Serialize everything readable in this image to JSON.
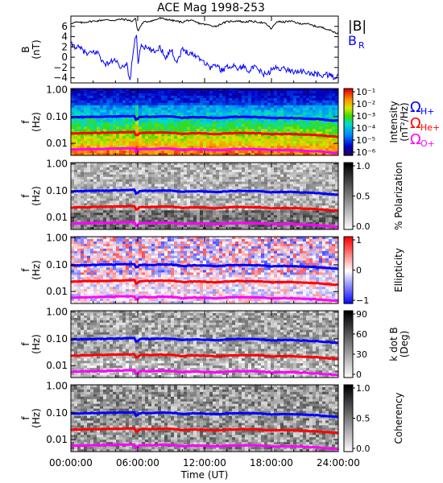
{
  "chart_data": {
    "type": "line",
    "title": "ACE Mag 1998-253",
    "xlabel": "Time (UT)",
    "x_ticks": [
      "00:00:00",
      "06:00:00",
      "12:00:00",
      "18:00:00",
      "24:00:00"
    ],
    "xlim_hours": [
      0,
      24
    ],
    "panels": [
      {
        "id": "b",
        "ylabel_main": "B",
        "ylabel_unit": "(nT)",
        "ylim": [
          -5,
          8
        ],
        "y_ticks": [
          6,
          4,
          2,
          0,
          -2,
          -4
        ],
        "legend": [
          "|B|",
          "B",
          "R"
        ],
        "series": [
          {
            "name": "|B|",
            "color": "#000000",
            "x": [
              0,
              0.5,
              1,
              1.5,
              2,
              2.5,
              3,
              3.5,
              4,
              4.5,
              5,
              5.5,
              5.8,
              6.0,
              6.3,
              6.5,
              7,
              7.5,
              8,
              8.5,
              9,
              9.5,
              10,
              10.5,
              11,
              11.5,
              12,
              12.5,
              13,
              13.5,
              14,
              14.5,
              15,
              15.5,
              16,
              16.5,
              17,
              17.5,
              18,
              18.5,
              19,
              19.5,
              20,
              20.5,
              21,
              21.5,
              22,
              22.5,
              23,
              23.5,
              24
            ],
            "y": [
              6.6,
              6.8,
              6.7,
              6.9,
              7.0,
              7.1,
              7.3,
              7.2,
              7.2,
              7.4,
              7.3,
              7.0,
              7.6,
              5.0,
              6.2,
              6.8,
              7.0,
              7.2,
              7.6,
              7.4,
              7.2,
              7.0,
              6.8,
              7.2,
              7.0,
              6.6,
              6.4,
              6.2,
              6.0,
              6.5,
              6.9,
              7.0,
              7.1,
              6.8,
              7.0,
              6.9,
              6.8,
              6.5,
              5.5,
              7.0,
              6.8,
              7.0,
              6.9,
              6.5,
              6.6,
              6.3,
              6.0,
              5.8,
              5.5,
              5.0,
              4.6
            ]
          },
          {
            "name": "B_R",
            "color": "#0000ff",
            "x": [
              0,
              0.5,
              1,
              1.5,
              2,
              2.5,
              3,
              3.5,
              4,
              4.5,
              5,
              5.3,
              5.6,
              5.9,
              6.0,
              6.3,
              6.6,
              7,
              7.5,
              8,
              8.5,
              9,
              9.5,
              10,
              10.5,
              11,
              11.5,
              12,
              12.5,
              13,
              13.5,
              14,
              14.5,
              15,
              15.5,
              16,
              16.5,
              17,
              17.5,
              18,
              18.5,
              19,
              19.5,
              20,
              20.5,
              21,
              21.5,
              22,
              22.5,
              23,
              23.5,
              24
            ],
            "y": [
              2.5,
              2.0,
              1.5,
              0.5,
              1.0,
              0.8,
              -1.5,
              -1.0,
              -0.5,
              -2.5,
              -1.0,
              -4.8,
              1.5,
              4.8,
              -1.5,
              2.5,
              2.0,
              1.5,
              1.0,
              2.0,
              0.0,
              1.5,
              -1.0,
              1.5,
              1.0,
              0.5,
              0.0,
              -1.0,
              -2.0,
              -1.5,
              -2.5,
              -2.0,
              -1.5,
              -2.2,
              -1.8,
              -2.5,
              -2.0,
              -2.8,
              -3.5,
              -2.5,
              -2.0,
              -2.2,
              -2.5,
              -2.8,
              -2.6,
              -3.0,
              -3.2,
              -3.3,
              -3.5,
              -3.4,
              -3.8,
              -3.8
            ]
          }
        ]
      },
      {
        "id": "intensity",
        "ylabel_main": "f",
        "ylabel_unit": "(Hz)",
        "colorbar_title": "Intensity",
        "colorbar_unit": "(nT²/Hz)",
        "colorbar_ticks": [
          "10⁻¹",
          "10⁻²",
          "10⁻³",
          "10⁻⁴",
          "10⁻⁵",
          "10⁻⁶"
        ],
        "colormap": "rainbow",
        "cyclotron_legend": [
          {
            "base": "Ω",
            "sub": "H+",
            "color": "#0000ff"
          },
          {
            "base": "Ω",
            "sub": "He+",
            "color": "#ff0000"
          },
          {
            "base": "Ω",
            "sub": "O+",
            "color": "#ff00ff"
          }
        ]
      },
      {
        "id": "polarization",
        "ylabel_main": "f",
        "ylabel_unit": "(Hz)",
        "colorbar_title": "% Polarization",
        "colorbar_ticks": [
          "1.0",
          "0.5",
          "0.0"
        ],
        "colormap": "gray"
      },
      {
        "id": "ellipticity",
        "ylabel_main": "f",
        "ylabel_unit": "(Hz)",
        "colorbar_title": "Ellipticity",
        "colorbar_ticks": [
          "1",
          "0",
          "−1"
        ],
        "colormap": "bwr"
      },
      {
        "id": "kdotb",
        "ylabel_main": "f",
        "ylabel_unit": "(Hz)",
        "colorbar_title": "k dot B",
        "colorbar_unit": "(Deg)",
        "colorbar_ticks": [
          "90",
          "60",
          "30",
          "0"
        ],
        "colormap": "gray"
      },
      {
        "id": "coherency",
        "ylabel_main": "f",
        "ylabel_unit": "(Hz)",
        "colorbar_title": "Coherency",
        "colorbar_ticks": [
          "1.0",
          "0.5",
          "0.0"
        ],
        "colormap": "gray"
      }
    ],
    "freq_ticks": [
      "1.00",
      "0.10",
      "0.01"
    ],
    "freq_ylim_log10": [
      -2.45,
      0.05
    ],
    "cyclotron_lines": {
      "x": [
        0,
        1,
        2,
        3,
        4,
        5,
        5.7,
        5.9,
        6.1,
        6.5,
        7,
        8,
        9,
        10,
        11,
        12,
        13,
        14,
        15,
        16,
        17,
        18,
        19,
        20,
        21,
        22,
        23,
        24
      ],
      "H+": [
        0.093,
        0.096,
        0.098,
        0.1,
        0.102,
        0.104,
        0.106,
        0.07,
        0.095,
        0.1,
        0.098,
        0.102,
        0.101,
        0.09,
        0.096,
        0.093,
        0.088,
        0.094,
        0.098,
        0.097,
        0.095,
        0.087,
        0.09,
        0.089,
        0.085,
        0.082,
        0.075,
        0.07
      ],
      "He+": [
        0.0233,
        0.024,
        0.0245,
        0.025,
        0.0255,
        0.026,
        0.0265,
        0.0175,
        0.024,
        0.025,
        0.0245,
        0.0255,
        0.0252,
        0.0225,
        0.024,
        0.0233,
        0.022,
        0.0235,
        0.0245,
        0.0242,
        0.0238,
        0.0218,
        0.0225,
        0.0222,
        0.0212,
        0.0205,
        0.0188,
        0.0175
      ],
      "O+": [
        0.0058,
        0.006,
        0.0061,
        0.0062,
        0.0064,
        0.0065,
        0.0066,
        0.0044,
        0.006,
        0.0062,
        0.0061,
        0.0064,
        0.0063,
        0.0056,
        0.006,
        0.0058,
        0.0055,
        0.0059,
        0.0061,
        0.0061,
        0.006,
        0.0055,
        0.0056,
        0.0056,
        0.0053,
        0.0051,
        0.0047,
        0.0044
      ]
    }
  }
}
